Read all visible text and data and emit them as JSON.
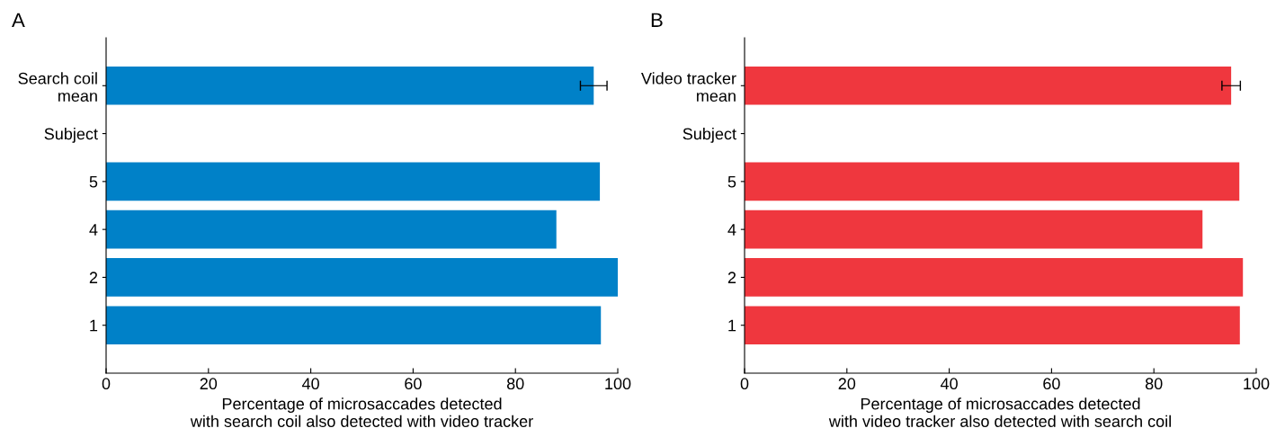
{
  "chart_data": [
    {
      "type": "bar",
      "orientation": "horizontal",
      "annotations": [
        "A"
      ],
      "xlabel": "Percentage of microsaccades detected\nwith search coil also detected with video tracker",
      "categories": [
        "Search coil\nmean",
        "Subject",
        "5",
        "4",
        "2",
        "1"
      ],
      "values": [
        95.3,
        null,
        96.5,
        88.0,
        100,
        96.7
      ],
      "errors": [
        2.6,
        null,
        null,
        null,
        null,
        null
      ],
      "color": "#0081c8",
      "xlim": [
        0,
        100
      ],
      "xticks": [
        0,
        20,
        40,
        60,
        80,
        100
      ],
      "grid": false,
      "legend": false
    },
    {
      "type": "bar",
      "orientation": "horizontal",
      "annotations": [
        "B"
      ],
      "xlabel": "Percentage of microsaccades detected\nwith video tracker also detected with search coil",
      "categories": [
        "Video tracker\nmean",
        "Subject",
        "5",
        "4",
        "2",
        "1"
      ],
      "values": [
        95.1,
        null,
        96.7,
        89.5,
        97.4,
        96.8
      ],
      "errors": [
        1.8,
        null,
        null,
        null,
        null,
        null
      ],
      "color": "#ef373e",
      "xlim": [
        0,
        100
      ],
      "xticks": [
        0,
        20,
        40,
        60,
        80,
        100
      ],
      "grid": false,
      "legend": false
    }
  ]
}
